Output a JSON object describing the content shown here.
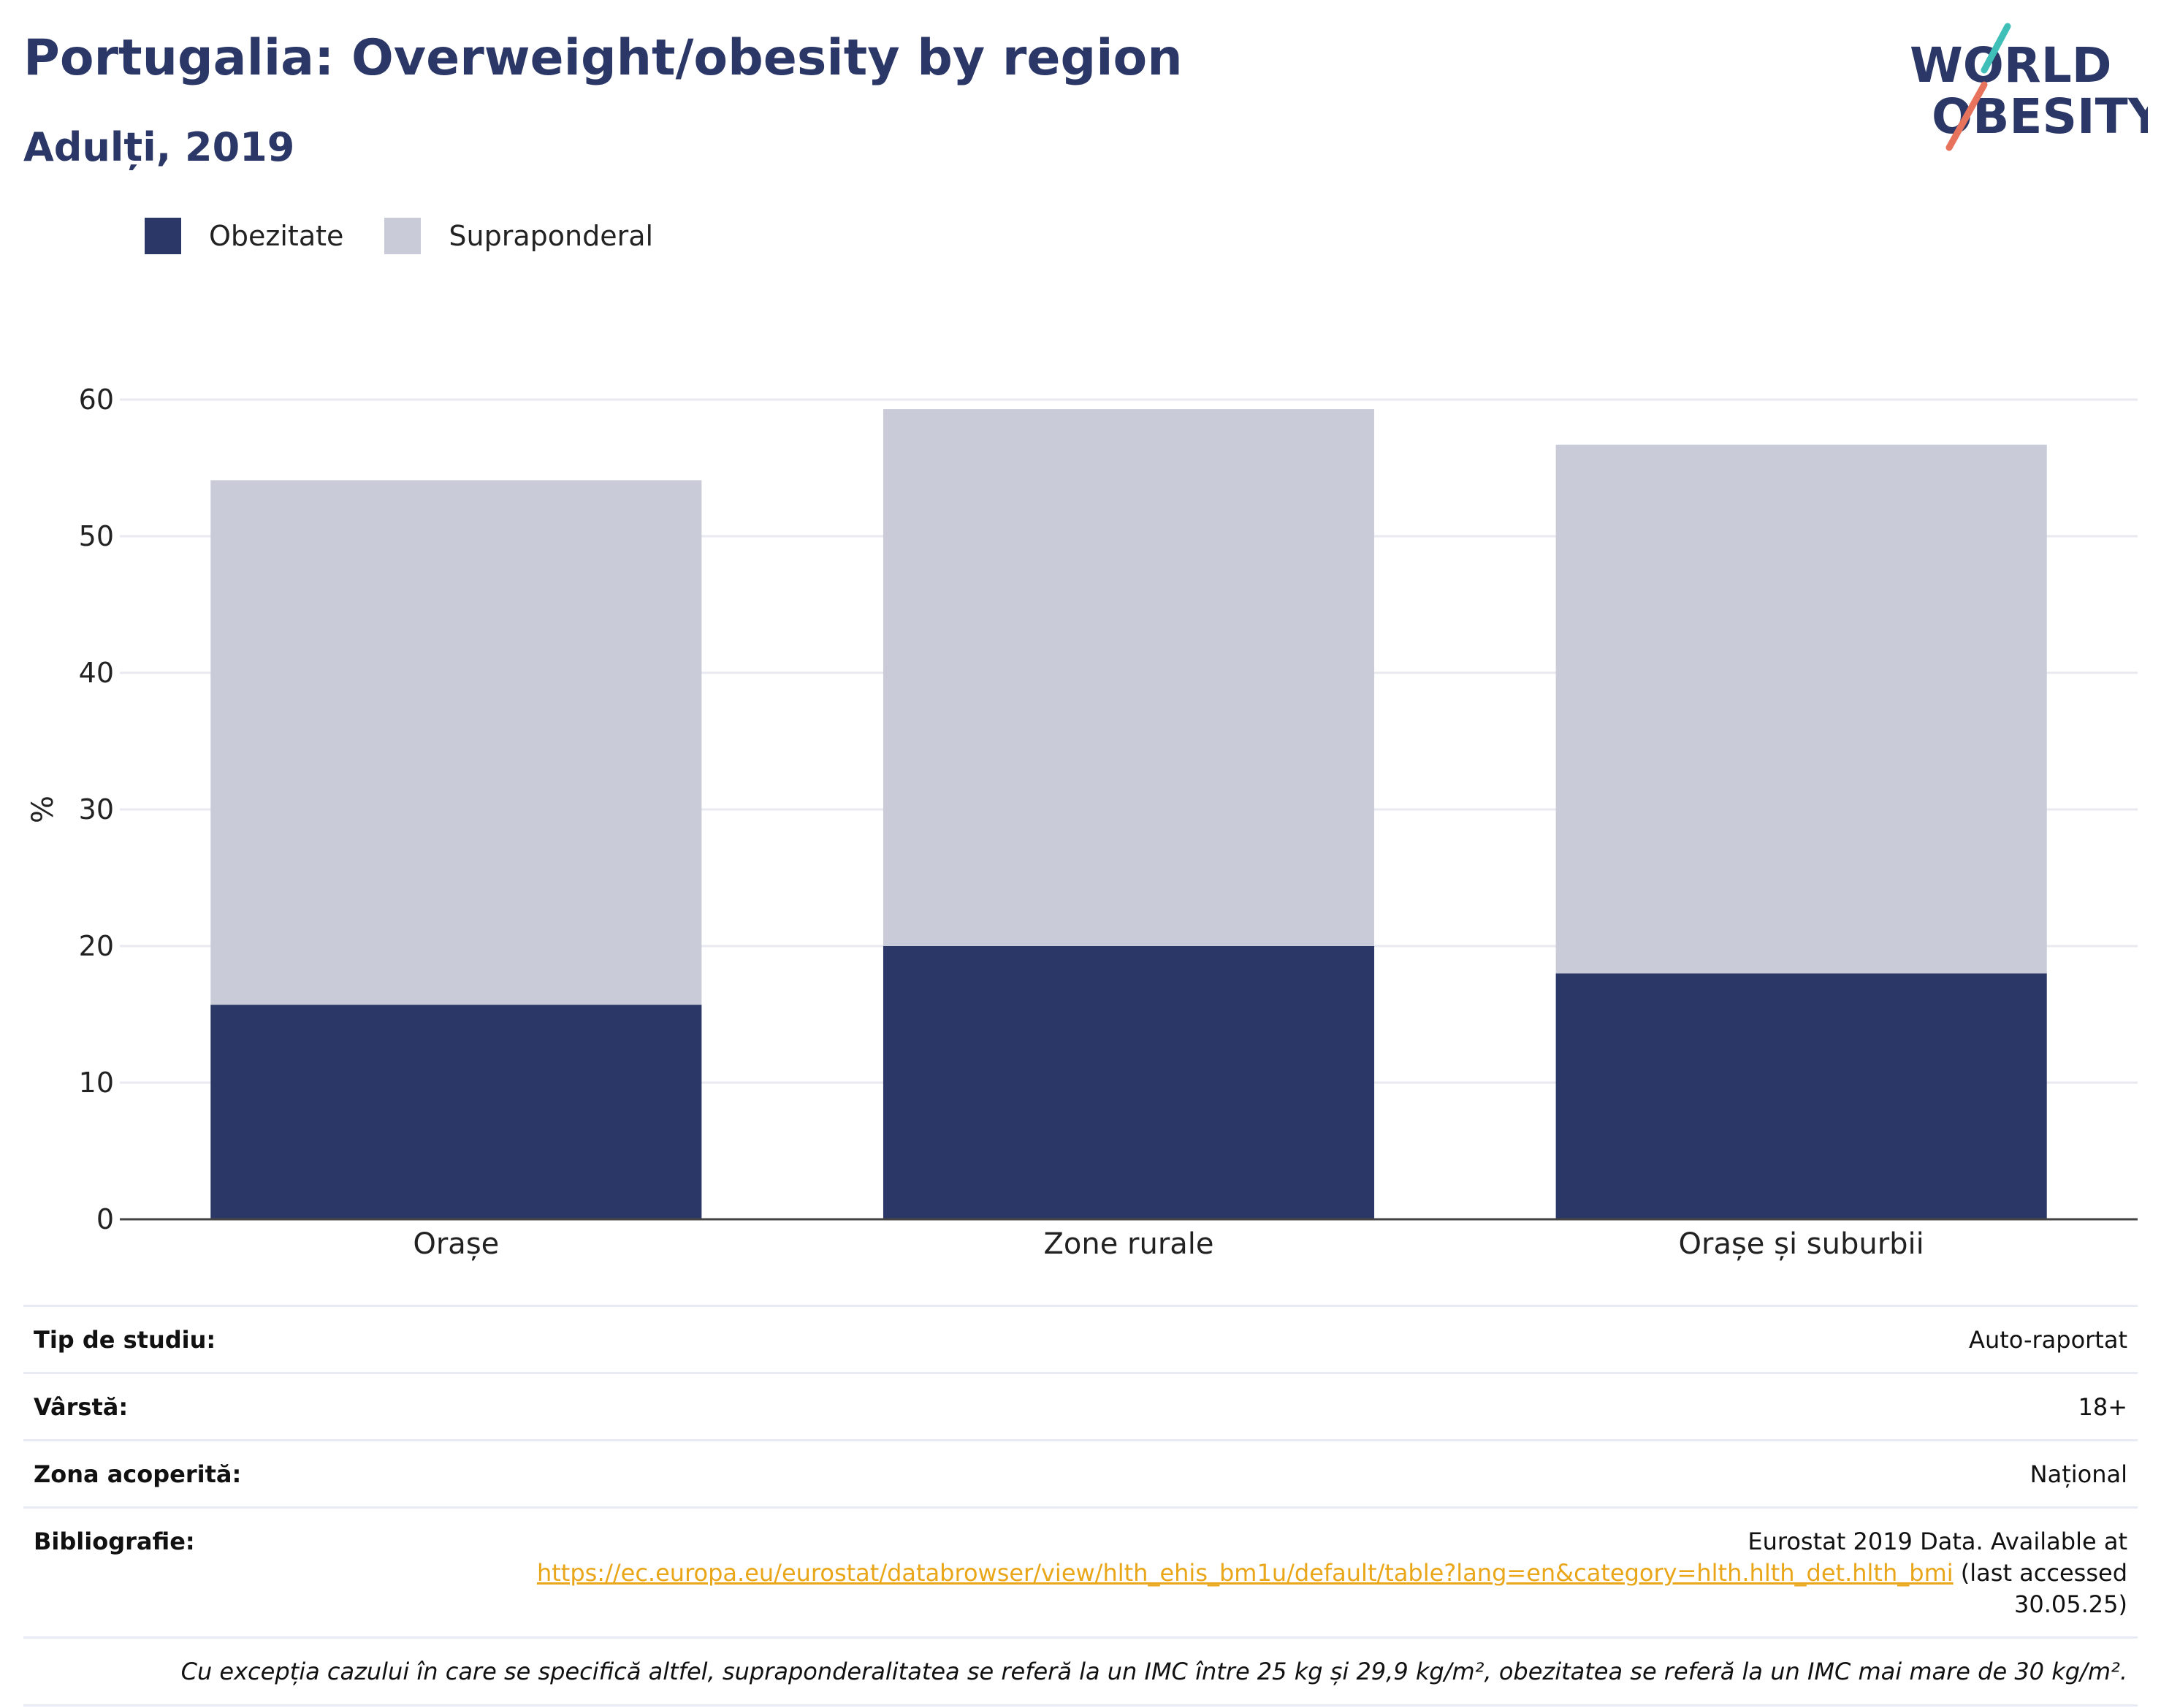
{
  "header": {
    "title": "Portugalia: Overweight/obesity by region",
    "subtitle": "Adulți, 2019"
  },
  "logo": {
    "line1": "WORLD",
    "line2": "OBESITY"
  },
  "colors": {
    "obesity": "#2b3766",
    "overweight": "#c9ccd8",
    "title": "#2b3766",
    "link": "#e9a618",
    "grid": "#e8eaf0",
    "logo_teal": "#3fbfb8",
    "logo_coral": "#e8735c"
  },
  "legend": {
    "items": [
      {
        "label": "Obezitate",
        "color": "#2b3766"
      },
      {
        "label": "Supraponderal",
        "color": "#c9ccd8"
      }
    ]
  },
  "chart_data": {
    "type": "bar",
    "stacked": true,
    "categories": [
      "Orașe",
      "Zone rurale",
      "Orașe și suburbii"
    ],
    "series": [
      {
        "name": "Obezitate",
        "values": [
          15.7,
          20.0,
          18.0
        ]
      },
      {
        "name": "Supraponderal",
        "values": [
          38.4,
          39.3,
          38.7
        ]
      }
    ],
    "totals": [
      54.1,
      59.3,
      56.7
    ],
    "ylabel": "%",
    "ylim": [
      0,
      60
    ],
    "yticks": [
      0,
      10,
      20,
      30,
      40,
      50,
      60
    ],
    "grid": true,
    "legend_position": "top-left"
  },
  "info": {
    "study_type": {
      "label": "Tip de studiu:",
      "value": "Auto-raportat"
    },
    "age": {
      "label": "Vârstă:",
      "value": "18+"
    },
    "coverage": {
      "label": "Zona acoperită:",
      "value": "Național"
    },
    "bibliography": {
      "label": "Bibliografie:",
      "line1": "Eurostat 2019 Data. Available at",
      "url": "https://ec.europa.eu/eurostat/databrowser/view/hlth_ehis_bm1u/default/table?lang=en&category=hlth.hlth_det.hlth_bmi",
      "after_url": " (last accessed",
      "line3": "30.05.25)"
    },
    "note": "Cu excepția cazului în care se specifică altfel, supraponderalitatea se referă la un IMC între 25 kg și 29,9 kg/m², obezitatea se referă la un IMC mai mare de 30 kg/m²."
  }
}
